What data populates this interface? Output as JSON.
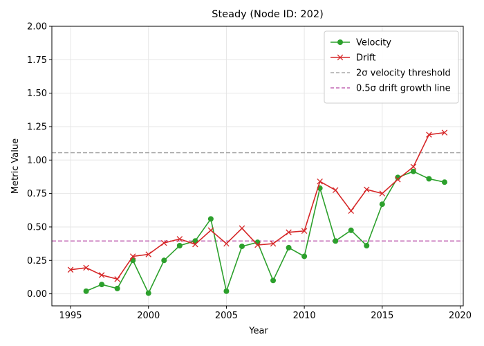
{
  "chart_data": {
    "type": "line",
    "title": "Steady (Node ID: 202)",
    "xlabel": "Year",
    "ylabel": "Metric Value",
    "xlim": [
      1993.8,
      2020.2
    ],
    "ylim": [
      -0.09,
      2.0
    ],
    "xticks": [
      1995,
      2000,
      2005,
      2010,
      2015,
      2020
    ],
    "yticks": [
      0.0,
      0.25,
      0.5,
      0.75,
      1.0,
      1.25,
      1.5,
      1.75,
      2.0
    ],
    "ytick_labels": [
      "0.00",
      "0.25",
      "0.50",
      "0.75",
      "1.00",
      "1.25",
      "1.50",
      "1.75",
      "2.00"
    ],
    "grid": true,
    "legend_position": "top-right",
    "series": [
      {
        "name": "Velocity",
        "color": "#2ca02c",
        "marker": "circle",
        "x": [
          1996,
          1997,
          1998,
          1999,
          2000,
          2001,
          2002,
          2003,
          2004,
          2005,
          2006,
          2007,
          2008,
          2009,
          2010,
          2011,
          2012,
          2013,
          2014,
          2015,
          2016,
          2017,
          2018,
          2019
        ],
        "y": [
          0.02,
          0.07,
          0.04,
          0.25,
          0.005,
          0.25,
          0.36,
          0.395,
          0.56,
          0.02,
          0.355,
          0.385,
          0.1,
          0.345,
          0.28,
          0.79,
          0.395,
          0.475,
          0.36,
          0.67,
          0.87,
          0.915,
          0.86,
          0.835
        ]
      },
      {
        "name": "Drift",
        "color": "#d62728",
        "marker": "x",
        "x": [
          1995,
          1996,
          1997,
          1998,
          1999,
          2000,
          2001,
          2002,
          2003,
          2004,
          2005,
          2006,
          2007,
          2008,
          2009,
          2010,
          2011,
          2012,
          2013,
          2014,
          2015,
          2016,
          2017,
          2018,
          2019
        ],
        "y": [
          0.18,
          0.195,
          0.14,
          0.11,
          0.28,
          0.295,
          0.38,
          0.41,
          0.37,
          0.475,
          0.375,
          0.49,
          0.365,
          0.375,
          0.46,
          0.47,
          0.84,
          0.775,
          0.62,
          0.78,
          0.75,
          0.855,
          0.95,
          1.19,
          1.205
        ]
      }
    ],
    "reference_lines": [
      {
        "name": "2σ velocity threshold",
        "y": 1.055,
        "color": "#999999"
      },
      {
        "name": "0.5σ drift growth line",
        "y": 0.395,
        "color": "#b84da8"
      }
    ]
  }
}
